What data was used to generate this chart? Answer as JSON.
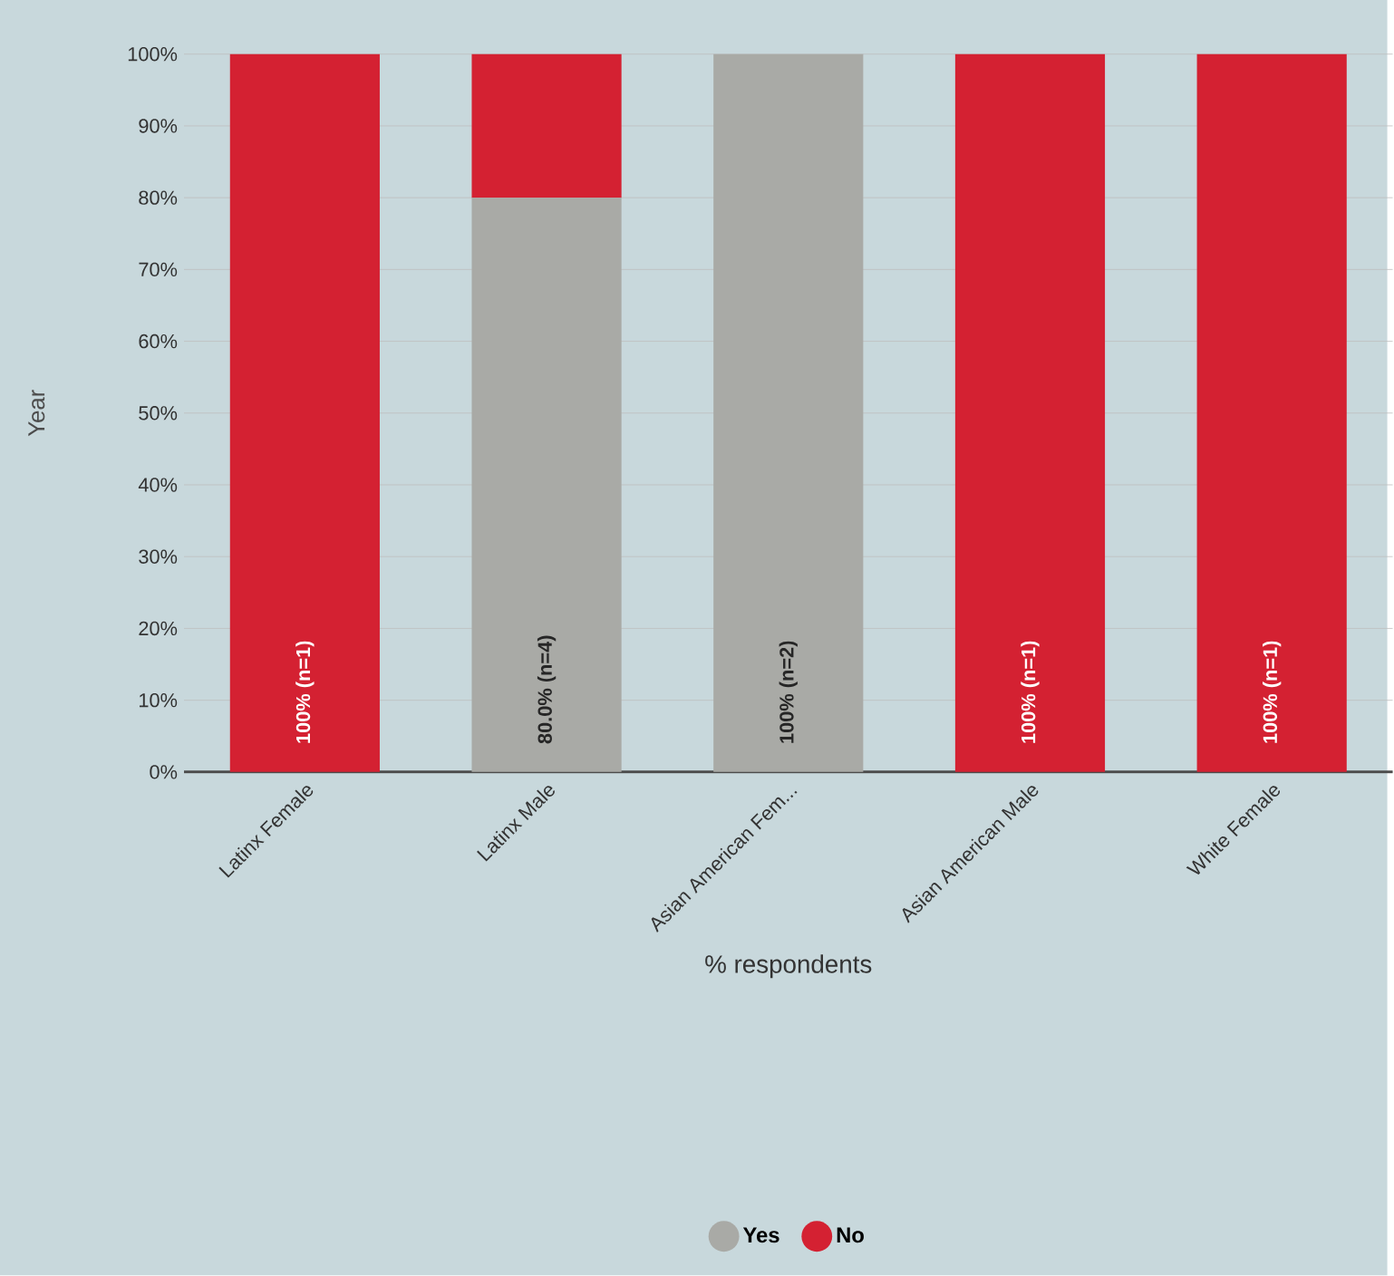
{
  "chart_data": {
    "type": "bar",
    "stacked": true,
    "xlabel": "% respondents",
    "ylabel": "Year",
    "categories": [
      "Latinx Female",
      "Latinx Male",
      "Asian American Fem...",
      "Asian American Male",
      "White Female"
    ],
    "series": [
      {
        "name": "Yes",
        "color": "#a9aaa6",
        "values": [
          0,
          80,
          100,
          0,
          0
        ],
        "value_labels": [
          null,
          "80.0% (n=4)",
          "100% (n=2)",
          null,
          null
        ]
      },
      {
        "name": "No",
        "color": "#d42132",
        "values": [
          100,
          20,
          0,
          100,
          100
        ],
        "value_labels": [
          "100% (n=1)",
          null,
          null,
          "100% (n=1)",
          "100% (n=1)"
        ]
      }
    ],
    "ylim": [
      0,
      100
    ],
    "yticks": [
      {
        "value": 0,
        "label": "0%"
      },
      {
        "value": 10,
        "label": "10%"
      },
      {
        "value": 20,
        "label": "20%"
      },
      {
        "value": 30,
        "label": "30%"
      },
      {
        "value": 40,
        "label": "40%"
      },
      {
        "value": 50,
        "label": "50%"
      },
      {
        "value": 60,
        "label": "60%"
      },
      {
        "value": 70,
        "label": "70%"
      },
      {
        "value": 80,
        "label": "80%"
      },
      {
        "value": 90,
        "label": "90%"
      },
      {
        "value": 100,
        "label": "100%"
      }
    ],
    "grid": "y",
    "legend": "bottom"
  }
}
